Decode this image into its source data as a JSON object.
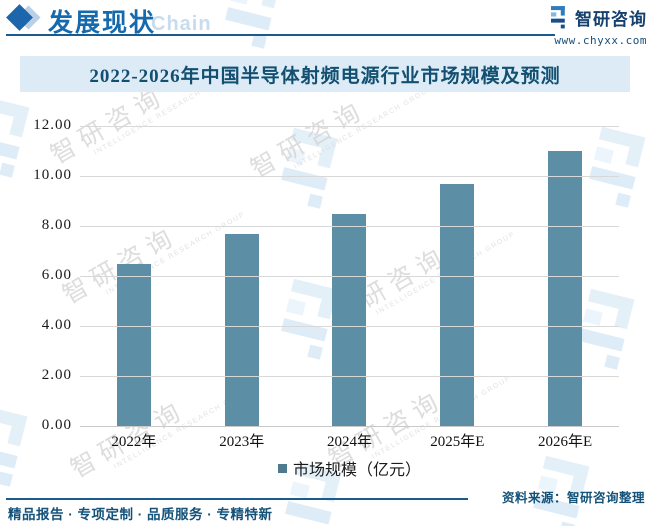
{
  "header": {
    "section_title": "发展现状",
    "section_watermark": "Chain",
    "brand_name": "智研咨询",
    "brand_url": "www.chyxx.com"
  },
  "chart_data": {
    "type": "bar",
    "title": "2022-2026年中国半导体射频电源行业市场规模及预测",
    "categories": [
      "2022年",
      "2023年",
      "2024年",
      "2025年E",
      "2026年E"
    ],
    "series": [
      {
        "name": "市场规模（亿元）",
        "values": [
          6.5,
          7.7,
          8.5,
          9.7,
          11.0
        ]
      }
    ],
    "ylim": [
      0,
      12
    ],
    "ytick_step": 2,
    "ytick_labels": [
      "0.00",
      "2.00",
      "4.00",
      "6.00",
      "8.00",
      "10.00",
      "12.00"
    ],
    "grid": true,
    "legend_position": "bottom",
    "bar_color": "#5c8fa6"
  },
  "footer": {
    "services": "精品报告 · 专项定制 · 品质服务 · 专精特新",
    "source": "资料来源：智研咨询整理"
  },
  "watermark": {
    "cn": "智研咨询",
    "en": "INTELLIGENCE RESEARCH GROUP"
  },
  "colors": {
    "accent_blue": "#1569ad",
    "dark_blue": "#124f70",
    "navy": "#16406e",
    "title_band_bg": "#dcebf6",
    "bar": "#5c8fa6",
    "legend_swatch": "#4e7a90",
    "gridline": "#d8d8d8",
    "watermark_blue": "#cfe4f4",
    "watermark_gray": "#d2d2d2"
  }
}
